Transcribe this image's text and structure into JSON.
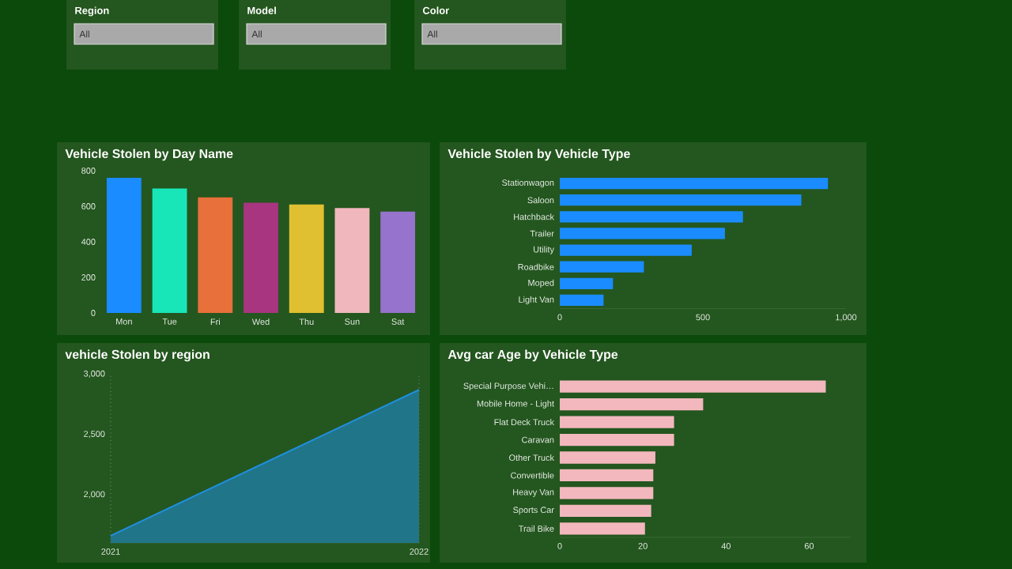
{
  "chart_data": [
    {
      "type": "other",
      "title": "Region",
      "annotations": [
        "All"
      ]
    },
    {
      "type": "other",
      "title": "Model",
      "annotations": [
        "All"
      ]
    },
    {
      "type": "other",
      "title": "Color",
      "annotations": [
        "All"
      ]
    },
    {
      "type": "bar",
      "title": "Vehicle Stolen by Day Name",
      "categories": [
        "Mon",
        "Tue",
        "Fri",
        "Wed",
        "Thu",
        "Sun",
        "Sat"
      ],
      "values": [
        760,
        700,
        650,
        620,
        610,
        590,
        570
      ],
      "colors": [
        "#1a8cff",
        "#19e6b8",
        "#e8703a",
        "#a8357f",
        "#e0c030",
        "#f0b8bc",
        "#9673cc"
      ],
      "ylim": [
        0,
        800
      ],
      "yticks": [
        0,
        200,
        400,
        600,
        800
      ]
    },
    {
      "type": "bar",
      "orientation": "horizontal",
      "title": "Vehicle Stolen by Vehicle Type",
      "categories": [
        "Stationwagon",
        "Saloon",
        "Hatchback",
        "Trailer",
        "Utility",
        "Roadbike",
        "Moped",
        "Light Van"
      ],
      "values": [
        937,
        844,
        640,
        577,
        461,
        294,
        186,
        153
      ],
      "color": "#1a8cff",
      "xlim": [
        0,
        1000
      ],
      "xticks": [
        0,
        500,
        {
          "value": 1000,
          "label": "1,000"
        }
      ]
    },
    {
      "type": "area",
      "title": "vehicle Stolen by region",
      "x": [
        2021,
        2022
      ],
      "values": [
        1660,
        2870
      ],
      "color": "#1f8fe0",
      "xlim": [
        2021,
        2022
      ],
      "xticks": [
        2021,
        2022
      ],
      "ylim": [
        1600,
        3000
      ],
      "yticks": [
        {
          "value": 2000,
          "label": "2,000"
        },
        {
          "value": 2500,
          "label": "2,500"
        },
        {
          "value": 3000,
          "label": "3,000"
        }
      ],
      "grid": "x"
    },
    {
      "type": "bar",
      "orientation": "horizontal",
      "title": "Avg car Age by Vehicle Type",
      "categories": [
        "Special Purpose Vehi…",
        "Mobile Home - Light",
        "Flat Deck Truck",
        "Caravan",
        "Other Truck",
        "Convertible",
        "Heavy Van",
        "Sports Car",
        "Trail Bike"
      ],
      "values": [
        64,
        34.5,
        27.5,
        27.5,
        23,
        22.5,
        22.5,
        22,
        20.5
      ],
      "color": "#f2b8bd",
      "xlim": [
        0,
        70
      ],
      "xticks": [
        0,
        20,
        40,
        60
      ]
    }
  ]
}
